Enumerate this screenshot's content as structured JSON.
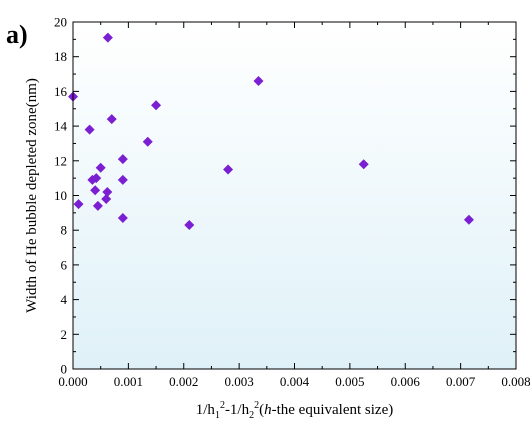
{
  "panel_label": "a)",
  "colors": {
    "marker": "#7B1FD2",
    "background_top": "#ffffff",
    "background_bottom": "#dff1f8",
    "axis": "#000000"
  },
  "chart_data": {
    "type": "scatter",
    "xlabel": "1/h₁²-1/h₂²(h-the equivalent size)",
    "xlabel_parts": {
      "a": "1/h",
      "a_sub": "1",
      "a_sup": "2",
      "b": "-1/h",
      "b_sub": "2",
      "b_sup": "2",
      "paren_open": "(",
      "italic_h": "h",
      "rest": "-the equivalent size)"
    },
    "ylabel": "Width of He bubble depleted zone(nm)",
    "xlim": [
      0.0,
      0.008
    ],
    "ylim": [
      0,
      20
    ],
    "xticks": [
      "0.000",
      "0.001",
      "0.002",
      "0.003",
      "0.004",
      "0.005",
      "0.006",
      "0.007",
      "0.008"
    ],
    "yticks": [
      "0",
      "2",
      "4",
      "6",
      "8",
      "10",
      "12",
      "14",
      "16",
      "18",
      "20"
    ],
    "marker": "diamond",
    "grid": false,
    "legend": "none",
    "points": [
      {
        "x": 0.0,
        "y": 15.7
      },
      {
        "x": 0.0001,
        "y": 9.5
      },
      {
        "x": 0.0003,
        "y": 13.8
      },
      {
        "x": 0.00035,
        "y": 10.9
      },
      {
        "x": 0.0004,
        "y": 10.3
      },
      {
        "x": 0.00042,
        "y": 11.0
      },
      {
        "x": 0.00045,
        "y": 9.4
      },
      {
        "x": 0.0005,
        "y": 11.6
      },
      {
        "x": 0.0006,
        "y": 9.8
      },
      {
        "x": 0.00062,
        "y": 10.2
      },
      {
        "x": 0.00063,
        "y": 19.1
      },
      {
        "x": 0.0007,
        "y": 14.4
      },
      {
        "x": 0.0009,
        "y": 12.1
      },
      {
        "x": 0.0009,
        "y": 10.9
      },
      {
        "x": 0.0009,
        "y": 8.7
      },
      {
        "x": 0.00135,
        "y": 13.1
      },
      {
        "x": 0.0015,
        "y": 15.2
      },
      {
        "x": 0.0021,
        "y": 8.3
      },
      {
        "x": 0.0028,
        "y": 11.5
      },
      {
        "x": 0.00335,
        "y": 16.6
      },
      {
        "x": 0.00525,
        "y": 11.8
      },
      {
        "x": 0.00715,
        "y": 8.6
      }
    ]
  }
}
